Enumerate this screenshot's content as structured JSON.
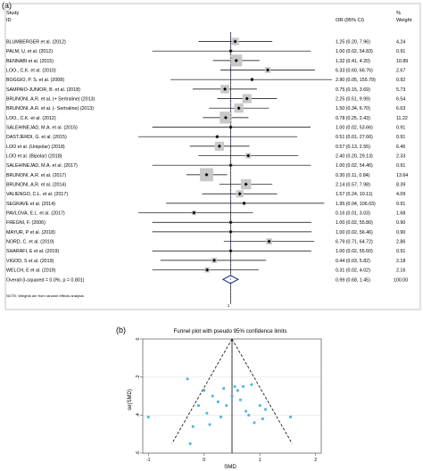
{
  "panels": {
    "a": {
      "label": "(a)"
    },
    "b": {
      "label": "(b)"
    }
  },
  "chart_data": [
    {
      "type": "forest",
      "header": {
        "study_line1": "Study",
        "study_line2": "ID",
        "or_label": "OR (95% CI)",
        "weight_line1": "%",
        "weight_line2": "Weight"
      },
      "xscale": "log",
      "xlim": [
        0.0064,
        156
      ],
      "reference_line": 1,
      "xtick_label": "1",
      "note": "NOTE: Weights are from random effects analysis",
      "studies": [
        {
          "id": "BLUMBERGER et al. (2012)",
          "or": 1.25,
          "lo": 0.2,
          "hi": 7.96,
          "ci_text": "1.25 (0.20, 7.96)",
          "weight": "4.24"
        },
        {
          "id": "PALM, U. et al. (2012)",
          "or": 1.0,
          "lo": 0.02,
          "hi": 54.83,
          "ci_text": "1.00 (0.02, 54.83)",
          "weight": "0.91"
        },
        {
          "id": "BENNABI et al. (2015)",
          "or": 1.32,
          "lo": 0.41,
          "hi": 4.2,
          "ci_text": "1.32 (0.41, 4.20)",
          "weight": "10.89"
        },
        {
          "id": "LOO., C.K. et al. (2010)",
          "or": 6.33,
          "lo": 0.6,
          "hi": 66.76,
          "ci_text": "6.33 (0.60, 66.76)",
          "weight": "2.67"
        },
        {
          "id": "BOGGIO, P. S. et al. (2008)",
          "or": 2.9,
          "lo": 0.05,
          "hi": 155.79,
          "ci_text": "2.90 (0.05, 155.79)",
          "weight": "0.92"
        },
        {
          "id": "SAMPAIO-JUNIOR, B. et al. (2018)",
          "or": 0.75,
          "lo": 0.15,
          "hi": 3.69,
          "ci_text": "0.75 (0.15, 3.69)",
          "weight": "5.73"
        },
        {
          "id": "BRUNONI, A.R. et al. (+ Sertraline) (2013)",
          "or": 2.25,
          "lo": 0.51,
          "hi": 9.99,
          "ci_text": "2.25 (0.51, 9.99)",
          "weight": "6.54"
        },
        {
          "id": "BRUNONI, A.R. et al. (- Sertraline) (2013)",
          "or": 1.5,
          "lo": 0.34,
          "hi": 6.7,
          "ci_text": "1.50 (0.34, 6.70)",
          "weight": "6.63"
        },
        {
          "id": "LOO., C.K. et al. (2012)",
          "or": 0.78,
          "lo": 0.25,
          "hi": 2.43,
          "ci_text": "0.78 (0.25, 2.43)",
          "weight": "11.22"
        },
        {
          "id": "SALEHINEJAD, M.A. et al. (2015)",
          "or": 1.0,
          "lo": 0.02,
          "hi": 53.66,
          "ci_text": "1.00 (0.02, 53.66)",
          "weight": "0.91"
        },
        {
          "id": "DASTJERDI, G. et al. (2015)",
          "or": 0.51,
          "lo": 0.01,
          "hi": 27.66,
          "ci_text": "0.51 (0.01, 27.66)",
          "weight": "0.91"
        },
        {
          "id": "LOO et al. (Unipolar) (2018)",
          "or": 0.57,
          "lo": 0.13,
          "hi": 2.55,
          "ci_text": "0.57 (0.13, 2.55)",
          "weight": "6.46"
        },
        {
          "id": "LOO et al. (Bipolar) (2018)",
          "or": 2.4,
          "lo": 0.2,
          "hi": 29.13,
          "ci_text": "2.40 (0.20, 29.13)",
          "weight": "2.33"
        },
        {
          "id": "SALEHINEJAD, M.A. et al. (2017)",
          "or": 1.0,
          "lo": 0.02,
          "hi": 54.46,
          "ci_text": "1.00 (0.02, 54.46)",
          "weight": "0.91"
        },
        {
          "id": "BRUNONI, A.R. et al. (2017)",
          "or": 0.3,
          "lo": 0.11,
          "hi": 0.84,
          "ci_text": "0.30 (0.11, 0.84)",
          "weight": "13.64"
        },
        {
          "id": "BRUNONI, A.R. et al. (2014)",
          "or": 2.14,
          "lo": 0.57,
          "hi": 7.98,
          "ci_text": "2.14 (0.57, 7.98)",
          "weight": "8.39"
        },
        {
          "id": "VALIENGO, C.L. et al. (2017)",
          "or": 1.57,
          "lo": 0.24,
          "hi": 10.11,
          "ci_text": "1.57 (0.24, 10.11)",
          "weight": "4.09"
        },
        {
          "id": "SEGRAVE et al. (2014)",
          "or": 1.95,
          "lo": 0.04,
          "hi": 106.03,
          "ci_text": "1.95 (0.04, 106.03)",
          "weight": "0.91"
        },
        {
          "id": "PAVLOVA, E.L. et al. (2017)",
          "or": 0.16,
          "lo": 0.01,
          "hi": 3.03,
          "ci_text": "0.16 (0.01, 3.03)",
          "weight": "1.68"
        },
        {
          "id": "FREGNI, F. (2006)",
          "or": 1.0,
          "lo": 0.02,
          "hi": 55.8,
          "ci_text": "1.00 (0.02, 55.80)",
          "weight": "0.90"
        },
        {
          "id": "MAYUR, P et al. (2018)",
          "or": 1.0,
          "lo": 0.02,
          "hi": 56.46,
          "ci_text": "1.00 (0.02, 56.46)",
          "weight": "0.90"
        },
        {
          "id": "NORD, C. et al. (2019)",
          "or": 6.79,
          "lo": 0.71,
          "hi": 64.72,
          "ci_text": "6.79 (0.71, 64.72)",
          "weight": "2.86"
        },
        {
          "id": "SHARAFI, E et al. (2019)",
          "or": 1.0,
          "lo": 0.02,
          "hi": 55.6,
          "ci_text": "1.00 (0.02, 55.60)",
          "weight": "0.91"
        },
        {
          "id": "VIGOD, S et al. (2019)",
          "or": 0.44,
          "lo": 0.03,
          "hi": 5.82,
          "ci_text": "0.44 (0.03, 5.82)",
          "weight": "2.18"
        },
        {
          "id": "WELCH, E et al. (2019)",
          "or": 0.31,
          "lo": 0.02,
          "hi": 4.02,
          "ci_text": "0.31 (0.02, 4.02)",
          "weight": "2.16"
        }
      ],
      "overall": {
        "label": "Overall  (I-squared = 0.0%, p = 0.801)",
        "or": 0.99,
        "lo": 0.68,
        "hi": 1.45,
        "ci_text": "0.99 (0.68, 1.45)",
        "weight": "100.00"
      }
    },
    {
      "type": "scatter",
      "title": "Funnel plot with pseudo 95% confidence limits",
      "xlabel": "SMD",
      "ylabel": "se(SMD)",
      "xlim": [
        -1.1,
        2.1
      ],
      "ylim": [
        0,
        0.6
      ],
      "y_reversed": true,
      "xticks": [
        -1,
        0,
        1,
        2
      ],
      "yticks": [
        0,
        0.2,
        0.4,
        0.6
      ],
      "xtick_labels": [
        "-1",
        "0",
        "1",
        "2"
      ],
      "ytick_labels": [
        "0",
        ".2",
        ".4",
        ".6"
      ],
      "grid": "horizontal",
      "pooled_estimate": 0.5,
      "point_color": "#4fb3e0",
      "points": [
        {
          "x": -1.0,
          "y": 0.41
        },
        {
          "x": -0.3,
          "y": 0.21
        },
        {
          "x": -0.25,
          "y": 0.55
        },
        {
          "x": -0.2,
          "y": 0.46
        },
        {
          "x": -0.1,
          "y": 0.35
        },
        {
          "x": 0.0,
          "y": 0.27
        },
        {
          "x": 0.05,
          "y": 0.39
        },
        {
          "x": 0.1,
          "y": 0.45
        },
        {
          "x": 0.15,
          "y": 0.3
        },
        {
          "x": 0.25,
          "y": 0.33
        },
        {
          "x": 0.3,
          "y": 0.41
        },
        {
          "x": 0.35,
          "y": 0.26
        },
        {
          "x": 0.4,
          "y": 0.35
        },
        {
          "x": 0.5,
          "y": 0.3
        },
        {
          "x": 0.55,
          "y": 0.25
        },
        {
          "x": 0.6,
          "y": 0.27
        },
        {
          "x": 0.65,
          "y": 0.32
        },
        {
          "x": 0.7,
          "y": 0.25
        },
        {
          "x": 0.75,
          "y": 0.38
        },
        {
          "x": 0.8,
          "y": 0.4
        },
        {
          "x": 0.85,
          "y": 0.24
        },
        {
          "x": 0.9,
          "y": 0.44
        },
        {
          "x": 1.0,
          "y": 0.35
        },
        {
          "x": 1.05,
          "y": 0.42
        },
        {
          "x": 1.1,
          "y": 0.37
        },
        {
          "x": 1.55,
          "y": 0.41
        }
      ]
    }
  ]
}
